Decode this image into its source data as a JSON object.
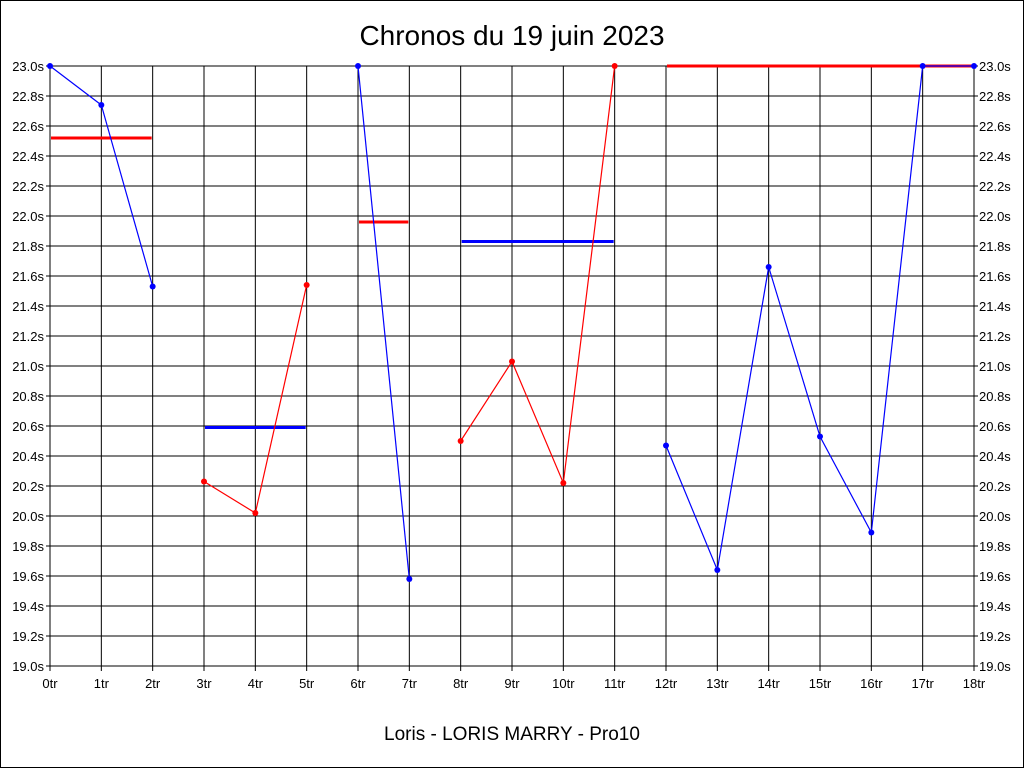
{
  "chart_data": {
    "type": "line",
    "title": "Chronos du 19 juin 2023",
    "caption": "Loris - LORIS MARRY - Pro10",
    "x_tick_labels": [
      "0tr",
      "1tr",
      "2tr",
      "3tr",
      "4tr",
      "5tr",
      "6tr",
      "7tr",
      "8tr",
      "9tr",
      "10tr",
      "11tr",
      "12tr",
      "13tr",
      "14tr",
      "15tr",
      "16tr",
      "17tr",
      "18tr"
    ],
    "y_tick_labels": [
      "19.0s",
      "19.2s",
      "19.4s",
      "19.6s",
      "19.8s",
      "20.0s",
      "20.2s",
      "20.4s",
      "20.6s",
      "20.8s",
      "21.0s",
      "21.2s",
      "21.4s",
      "21.6s",
      "21.8s",
      "22.0s",
      "22.2s",
      "22.4s",
      "22.6s",
      "22.8s",
      "23.0s"
    ],
    "xlim": [
      0,
      18
    ],
    "ylim": [
      19.0,
      23.0
    ],
    "y_ticks": [
      19.0,
      19.2,
      19.4,
      19.6,
      19.8,
      20.0,
      20.2,
      20.4,
      20.6,
      20.8,
      21.0,
      21.2,
      21.4,
      21.6,
      21.8,
      22.0,
      22.2,
      22.4,
      22.6,
      22.8,
      23.0
    ],
    "grid": true,
    "y_axis_both_sides": true,
    "colors": {
      "blue": "#0000ff",
      "red": "#ff0000"
    },
    "segments": [
      {
        "color": "blue",
        "points": [
          [
            0,
            23.0
          ],
          [
            1,
            22.74
          ],
          [
            2,
            21.53
          ]
        ]
      },
      {
        "color": "red",
        "points": [
          [
            3,
            20.23
          ],
          [
            4,
            20.02
          ],
          [
            5,
            21.54
          ]
        ]
      },
      {
        "color": "blue",
        "points": [
          [
            6,
            23.0
          ],
          [
            7,
            19.58
          ]
        ]
      },
      {
        "color": "red",
        "points": [
          [
            8,
            20.5
          ],
          [
            9,
            21.03
          ],
          [
            10,
            20.22
          ],
          [
            11,
            23.0
          ]
        ]
      },
      {
        "color": "blue",
        "points": [
          [
            12,
            20.47
          ],
          [
            13,
            19.64
          ],
          [
            14,
            21.66
          ],
          [
            15,
            20.53
          ],
          [
            16,
            19.89
          ],
          [
            17,
            23.0
          ],
          [
            18,
            23.0
          ]
        ]
      }
    ],
    "average_lines": [
      {
        "color": "red",
        "x": [
          0,
          2
        ],
        "y": 22.52
      },
      {
        "color": "blue",
        "x": [
          3,
          5
        ],
        "y": 20.59
      },
      {
        "color": "red",
        "x": [
          6,
          7
        ],
        "y": 21.96
      },
      {
        "color": "blue",
        "x": [
          8,
          11
        ],
        "y": 21.83
      },
      {
        "color": "red",
        "x": [
          12,
          18
        ],
        "y": 23.0
      }
    ]
  }
}
